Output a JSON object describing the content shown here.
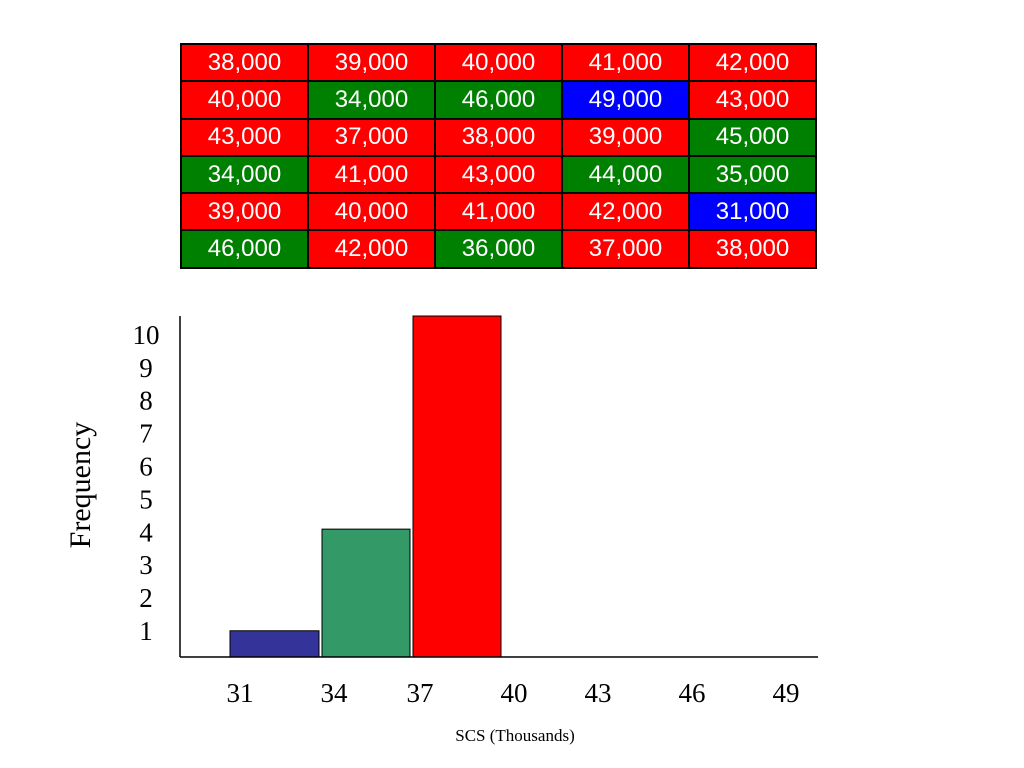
{
  "table": {
    "colors": {
      "red": "#ff0000",
      "green": "#008000",
      "blue": "#0000ff"
    },
    "rows": [
      [
        {
          "value": "38,000",
          "color": "red"
        },
        {
          "value": "39,000",
          "color": "red"
        },
        {
          "value": "40,000",
          "color": "red"
        },
        {
          "value": "41,000",
          "color": "red"
        },
        {
          "value": "42,000",
          "color": "red"
        }
      ],
      [
        {
          "value": "40,000",
          "color": "red"
        },
        {
          "value": "34,000",
          "color": "green"
        },
        {
          "value": "46,000",
          "color": "green"
        },
        {
          "value": "49,000",
          "color": "blue"
        },
        {
          "value": "43,000",
          "color": "red"
        }
      ],
      [
        {
          "value": "43,000",
          "color": "red"
        },
        {
          "value": "37,000",
          "color": "red"
        },
        {
          "value": "38,000",
          "color": "red"
        },
        {
          "value": "39,000",
          "color": "red"
        },
        {
          "value": "45,000",
          "color": "green"
        }
      ],
      [
        {
          "value": "34,000",
          "color": "green"
        },
        {
          "value": "41,000",
          "color": "red"
        },
        {
          "value": "43,000",
          "color": "red"
        },
        {
          "value": "44,000",
          "color": "green"
        },
        {
          "value": "35,000",
          "color": "green"
        }
      ],
      [
        {
          "value": "39,000",
          "color": "red"
        },
        {
          "value": "40,000",
          "color": "red"
        },
        {
          "value": "41,000",
          "color": "red"
        },
        {
          "value": "42,000",
          "color": "red"
        },
        {
          "value": "31,000",
          "color": "blue"
        }
      ],
      [
        {
          "value": "46,000",
          "color": "green"
        },
        {
          "value": "42,000",
          "color": "red"
        },
        {
          "value": "36,000",
          "color": "green"
        },
        {
          "value": "37,000",
          "color": "red"
        },
        {
          "value": "38,000",
          "color": "red"
        }
      ]
    ]
  },
  "chart_data": {
    "type": "bar",
    "title": "",
    "xlabel": "SCS (Thousands)",
    "ylabel": "Frequency",
    "x_ticks": [
      "31",
      "34",
      "37",
      "40",
      "43",
      "46",
      "49"
    ],
    "y_ticks": [
      "1",
      "2",
      "3",
      "4",
      "5",
      "6",
      "7",
      "8",
      "9",
      "10"
    ],
    "ylim": [
      0,
      10.4
    ],
    "xlim": [
      31,
      49
    ],
    "bars": [
      {
        "start": 31,
        "end": 34,
        "value": 0.8,
        "color": "#333399"
      },
      {
        "start": 34,
        "end": 37,
        "value": 3.9,
        "color": "#339966"
      },
      {
        "start": 37,
        "end": 40,
        "value": 10.4,
        "color": "#ff0000"
      }
    ],
    "grid": false,
    "legend": "none"
  }
}
